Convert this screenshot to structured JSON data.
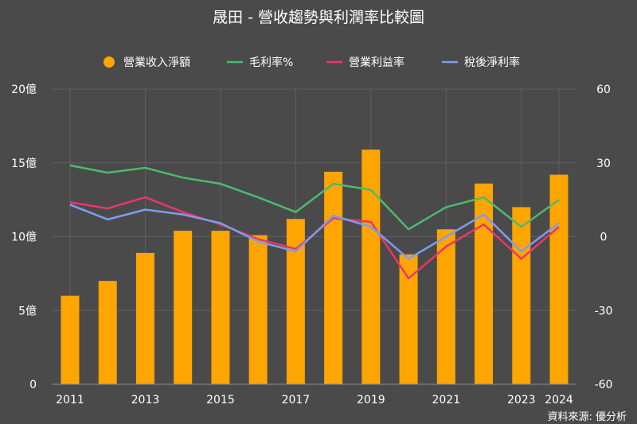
{
  "chart_data": {
    "type": "bar",
    "title": "晟田 - 營收趨勢與利潤率比較圖",
    "source": "資料來源: 優分析",
    "x": [
      2011,
      2012,
      2013,
      2014,
      2015,
      2016,
      2017,
      2018,
      2019,
      2020,
      2021,
      2022,
      2023,
      2024
    ],
    "x_tick_labels": [
      "2011",
      "2013",
      "2015",
      "2017",
      "2019",
      "2021",
      "2023",
      "2024"
    ],
    "left_axis": {
      "ylim": [
        0,
        20
      ],
      "ticks": [
        0,
        5,
        10,
        15,
        20
      ],
      "tick_labels": [
        "0",
        "5億",
        "10億",
        "15億",
        "20億"
      ]
    },
    "right_axis": {
      "ylim": [
        -60,
        60
      ],
      "ticks": [
        -60,
        -30,
        0,
        30,
        60
      ],
      "tick_labels": [
        "-60",
        "-30",
        "0",
        "30",
        "60"
      ]
    },
    "grid": true,
    "legend_position": "top",
    "series": [
      {
        "name": "營業收入淨額",
        "kind": "bar",
        "axis": "left",
        "color": "#ffa500",
        "values": [
          6.0,
          7.0,
          8.9,
          10.4,
          10.4,
          10.1,
          11.2,
          14.4,
          15.9,
          8.8,
          10.5,
          13.6,
          12.0,
          14.2
        ]
      },
      {
        "name": "毛利率%",
        "kind": "line",
        "axis": "right",
        "color": "#4cbb6c",
        "values": [
          29,
          26,
          28,
          24,
          21.5,
          16,
          10,
          21.5,
          19,
          3,
          12,
          16,
          4,
          15
        ]
      },
      {
        "name": "營業利益率",
        "kind": "line",
        "axis": "right",
        "color": "#e8386a",
        "values": [
          14,
          11.5,
          16,
          10,
          5,
          -1,
          -5,
          7.5,
          6,
          -17,
          -4,
          5,
          -9,
          4
        ]
      },
      {
        "name": "稅後淨利率",
        "kind": "line",
        "axis": "right",
        "color": "#7e9cf0",
        "values": [
          13,
          7,
          11,
          9,
          5.5,
          -2,
          -6,
          8.5,
          4,
          -9,
          0,
          9,
          -6,
          5.5
        ]
      }
    ]
  }
}
